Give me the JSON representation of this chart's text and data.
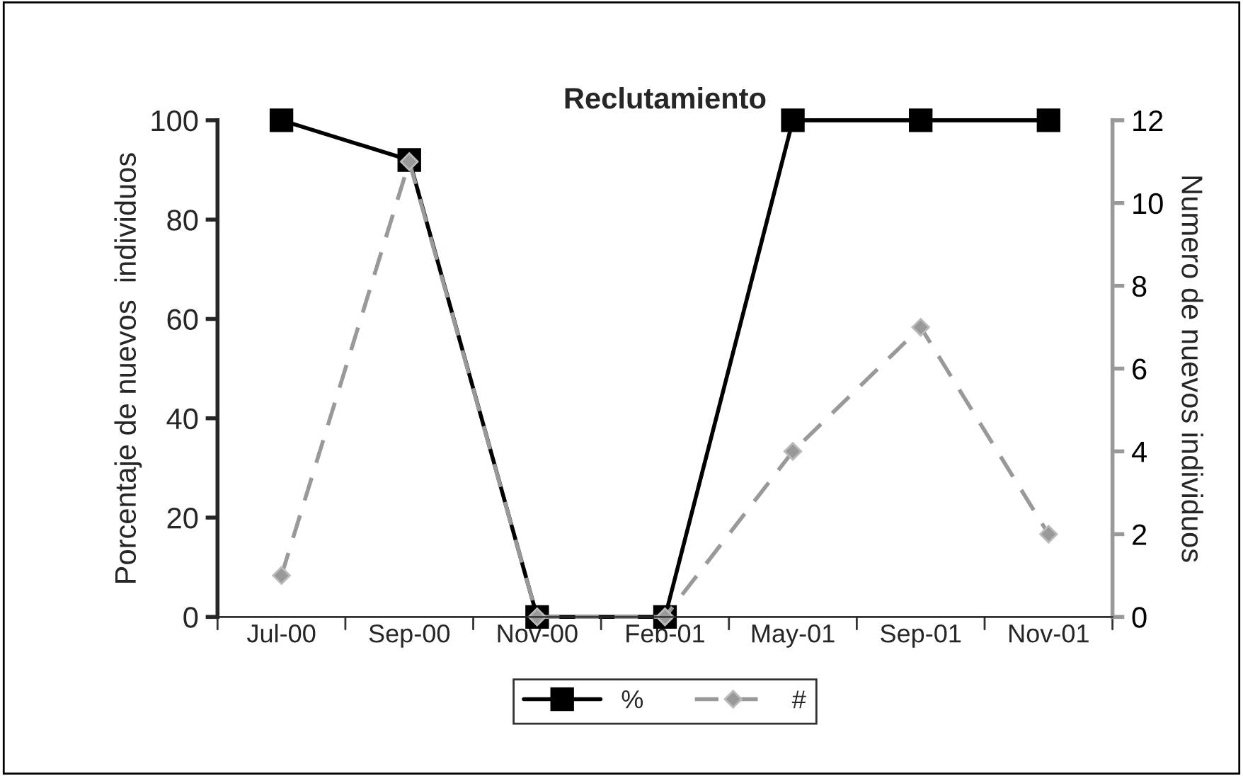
{
  "chart_data": {
    "type": "line",
    "title": "Reclutamiento",
    "ylabel": "Porcentaje de nuevos  individuos",
    "y2label": "Numero de nuevos individuos",
    "categories": [
      "Jul-00",
      "Sep-00",
      "Nov-00",
      "Feb-01",
      "May-01",
      "Sep-01",
      "Nov-01"
    ],
    "series": [
      {
        "name": "%",
        "color": "#000000",
        "values": [
          100,
          92,
          0,
          0,
          100,
          100,
          100
        ],
        "marker": "square",
        "line_style": "solid"
      },
      {
        "name": "#",
        "color": "#999999",
        "values": [
          1,
          11,
          0,
          0,
          4,
          7,
          2
        ],
        "marker": "diamond",
        "line_style": "dashed",
        "axis": "y2"
      }
    ],
    "ylim": [
      0,
      100
    ],
    "yticks": [
      0,
      20,
      40,
      60,
      80,
      100
    ],
    "y2lim": [
      0,
      12
    ],
    "y2ticks": [
      0,
      2,
      4,
      6,
      8,
      10,
      12
    ],
    "grid": false,
    "legend": "bottom"
  }
}
